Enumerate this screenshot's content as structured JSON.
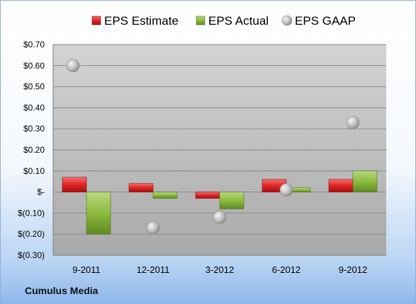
{
  "company": "Cumulus Media",
  "colors": {
    "estimate": "#e02424",
    "actual": "#8dbb3e",
    "gaap": "#b9b9b9"
  },
  "chart_data": {
    "type": "bar",
    "categories": [
      "9-2011",
      "12-2011",
      "3-2012",
      "6-2012",
      "9-2012"
    ],
    "series": [
      {
        "name": "EPS Estimate",
        "kind": "bar",
        "values": [
          0.07,
          0.04,
          -0.03,
          0.06,
          0.06
        ]
      },
      {
        "name": "EPS Actual",
        "kind": "bar",
        "values": [
          -0.2,
          -0.03,
          -0.08,
          0.02,
          0.1
        ]
      },
      {
        "name": "EPS GAAP",
        "kind": "scatter",
        "values": [
          0.6,
          -0.17,
          -0.12,
          0.01,
          0.33
        ]
      }
    ],
    "yticks": [
      0.7,
      0.6,
      0.5,
      0.4,
      0.3,
      0.2,
      0.1,
      0,
      -0.1,
      -0.2,
      -0.3
    ],
    "ytick_labels": [
      "$0.70",
      "$0.60",
      "$0.50",
      "$0.40",
      "$0.30",
      "$0.20",
      "$0.10",
      "$-",
      "$(0.10)",
      "$(0.20)",
      "$(0.30)"
    ],
    "ylim": [
      -0.3,
      0.7
    ],
    "legend_position": "top",
    "grid": true
  }
}
